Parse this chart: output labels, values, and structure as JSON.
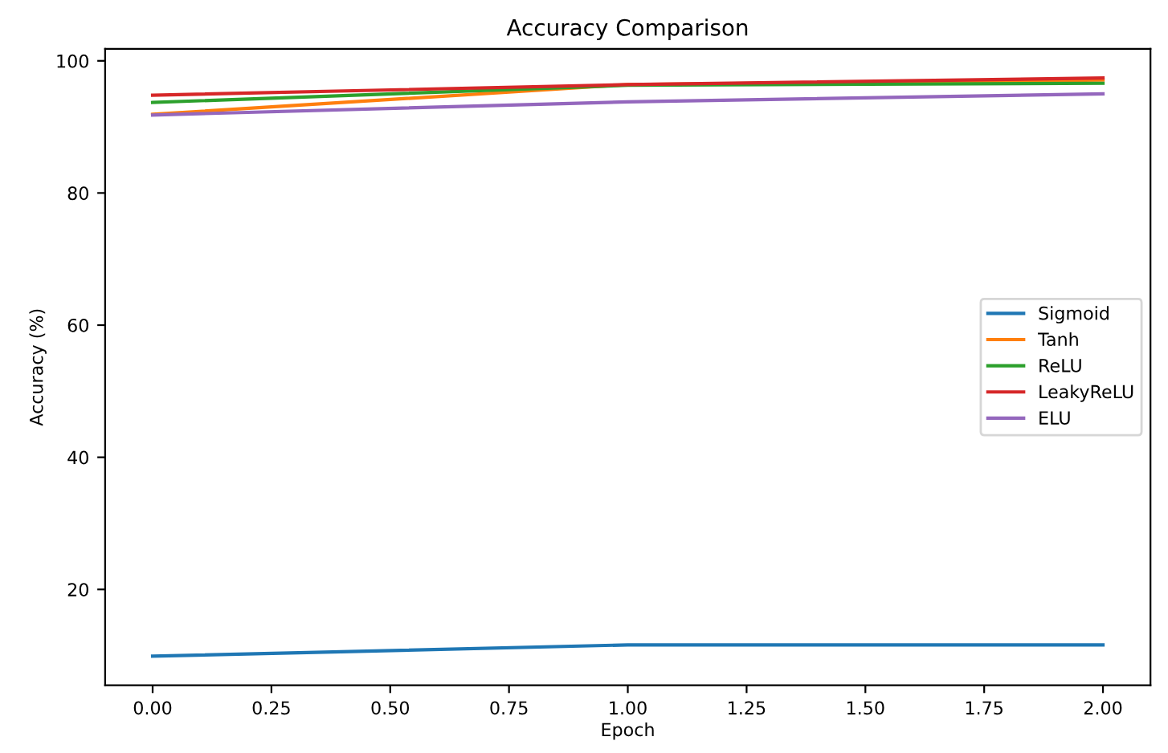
{
  "chart_data": {
    "type": "line",
    "title": "Accuracy Comparison",
    "xlabel": "Epoch",
    "ylabel": "Accuracy (%)",
    "x": [
      0,
      1,
      2
    ],
    "series": [
      {
        "name": "Sigmoid",
        "color": "#1f77b4",
        "values": [
          9.9,
          11.6,
          11.6
        ]
      },
      {
        "name": "Tanh",
        "color": "#ff7f0e",
        "values": [
          91.9,
          96.4,
          97.1
        ]
      },
      {
        "name": "ReLU",
        "color": "#2ca02c",
        "values": [
          93.7,
          96.3,
          96.6
        ]
      },
      {
        "name": "LeakyReLU",
        "color": "#d62728",
        "values": [
          94.8,
          96.4,
          97.4
        ]
      },
      {
        "name": "ELU",
        "color": "#9467bd",
        "values": [
          91.8,
          93.8,
          95.0
        ]
      }
    ],
    "xlim": [
      -0.1,
      2.1
    ],
    "ylim": [
      5.5,
      101.8
    ],
    "xticks": [
      {
        "value": 0,
        "label": "0.00"
      },
      {
        "value": 0.25,
        "label": "0.25"
      },
      {
        "value": 0.5,
        "label": "0.50"
      },
      {
        "value": 0.75,
        "label": "0.75"
      },
      {
        "value": 1,
        "label": "1.00"
      },
      {
        "value": 1.25,
        "label": "1.25"
      },
      {
        "value": 1.5,
        "label": "1.50"
      },
      {
        "value": 1.75,
        "label": "1.75"
      },
      {
        "value": 2,
        "label": "2.00"
      }
    ],
    "yticks": [
      20,
      40,
      60,
      80,
      100
    ],
    "legend": "center right",
    "grid": false
  }
}
